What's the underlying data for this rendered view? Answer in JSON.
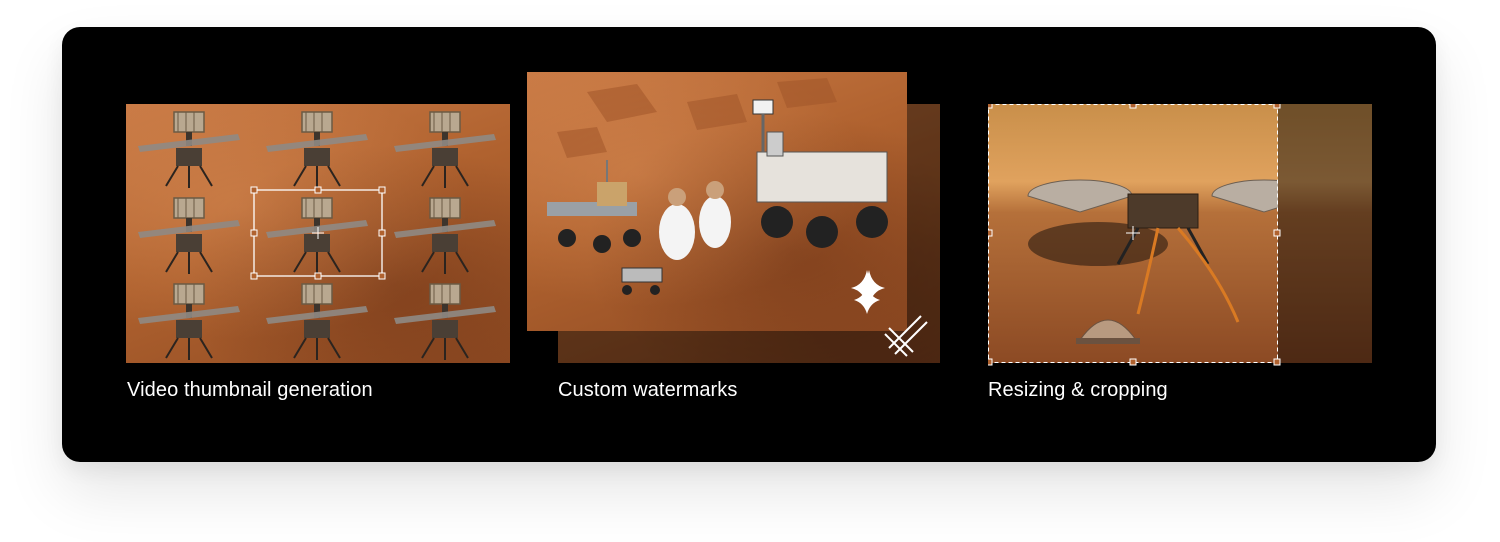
{
  "features": [
    {
      "label": "Video thumbnail generation",
      "icon": "crop-frame-icon"
    },
    {
      "label": "Custom watermarks",
      "icon": "sparkle-icon"
    },
    {
      "label": "Resizing & cropping",
      "icon": "crop-handles-icon"
    }
  ],
  "colors": {
    "card_background": "#000000",
    "label_text": "#ffffff",
    "mars_accent": "#b0622f"
  }
}
